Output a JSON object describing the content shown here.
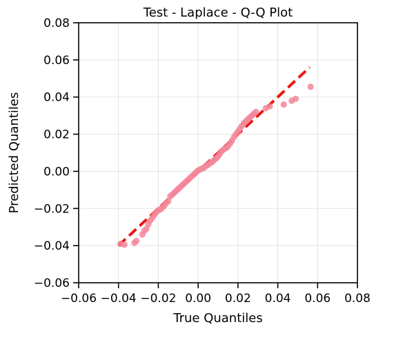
{
  "chart_data": {
    "type": "scatter",
    "title": "Test - Laplace - Q-Q Plot",
    "xlabel": "True Quantiles",
    "ylabel": "Predicted Quantiles",
    "xlim": [
      -0.06,
      0.08
    ],
    "ylim": [
      -0.06,
      0.08
    ],
    "xticks": [
      -0.06,
      -0.04,
      -0.02,
      0.0,
      0.02,
      0.04,
      0.06,
      0.08
    ],
    "yticks": [
      -0.06,
      -0.04,
      -0.02,
      0.0,
      0.02,
      0.04,
      0.06,
      0.08
    ],
    "xtick_labels": [
      "−0.06",
      "−0.04",
      "−0.02",
      "0.00",
      "0.02",
      "0.04",
      "0.06",
      "0.08"
    ],
    "ytick_labels": [
      "−0.06",
      "−0.04",
      "−0.02",
      "0.00",
      "0.02",
      "0.04",
      "0.06",
      "0.08"
    ],
    "grid": true,
    "reference_line": {
      "x": [
        -0.04,
        0.056
      ],
      "y": [
        -0.04,
        0.056
      ],
      "style": "dashed",
      "color": "#e8170f"
    },
    "series": [
      {
        "color": "#f2879a",
        "points": [
          [
            -0.039,
            -0.039
          ],
          [
            -0.037,
            -0.0395
          ],
          [
            -0.032,
            -0.0385
          ],
          [
            -0.031,
            -0.0375
          ],
          [
            -0.028,
            -0.034
          ],
          [
            -0.027,
            -0.032
          ],
          [
            -0.026,
            -0.031
          ],
          [
            -0.025,
            -0.0285
          ],
          [
            -0.024,
            -0.0265
          ],
          [
            -0.023,
            -0.025
          ],
          [
            -0.022,
            -0.0235
          ],
          [
            -0.021,
            -0.022
          ],
          [
            -0.02,
            -0.021
          ],
          [
            -0.019,
            -0.0205
          ],
          [
            -0.018,
            -0.0195
          ],
          [
            -0.017,
            -0.0185
          ],
          [
            -0.016,
            -0.017
          ],
          [
            -0.015,
            -0.016
          ],
          [
            -0.014,
            -0.0135
          ],
          [
            -0.013,
            -0.0125
          ],
          [
            -0.012,
            -0.0115
          ],
          [
            -0.011,
            -0.0105
          ],
          [
            -0.01,
            -0.0095
          ],
          [
            -0.009,
            -0.0085
          ],
          [
            -0.008,
            -0.0075
          ],
          [
            -0.007,
            -0.0065
          ],
          [
            -0.006,
            -0.0055
          ],
          [
            -0.005,
            -0.0045
          ],
          [
            -0.004,
            -0.0035
          ],
          [
            -0.003,
            -0.0025
          ],
          [
            -0.002,
            -0.0015
          ],
          [
            -0.001,
            -0.0005
          ],
          [
            0.0,
            0.0005
          ],
          [
            0.001,
            0.001
          ],
          [
            0.002,
            0.0015
          ],
          [
            0.003,
            0.002
          ],
          [
            0.004,
            0.003
          ],
          [
            0.005,
            0.0035
          ],
          [
            0.006,
            0.0045
          ],
          [
            0.007,
            0.005
          ],
          [
            0.008,
            0.006
          ],
          [
            0.009,
            0.007
          ],
          [
            0.01,
            0.008
          ],
          [
            0.011,
            0.0095
          ],
          [
            0.012,
            0.011
          ],
          [
            0.013,
            0.012
          ],
          [
            0.014,
            0.0125
          ],
          [
            0.015,
            0.0135
          ],
          [
            0.016,
            0.015
          ],
          [
            0.017,
            0.0165
          ],
          [
            0.018,
            0.0185
          ],
          [
            0.019,
            0.02
          ],
          [
            0.02,
            0.0215
          ],
          [
            0.021,
            0.023
          ],
          [
            0.022,
            0.0245
          ],
          [
            0.023,
            0.026
          ],
          [
            0.024,
            0.027
          ],
          [
            0.025,
            0.028
          ],
          [
            0.026,
            0.029
          ],
          [
            0.027,
            0.03
          ],
          [
            0.028,
            0.031
          ],
          [
            0.029,
            0.032
          ],
          [
            0.034,
            0.034
          ],
          [
            0.036,
            0.035
          ],
          [
            0.043,
            0.036
          ],
          [
            0.047,
            0.038
          ],
          [
            0.049,
            0.039
          ],
          [
            0.0565,
            0.0455
          ]
        ]
      }
    ]
  }
}
